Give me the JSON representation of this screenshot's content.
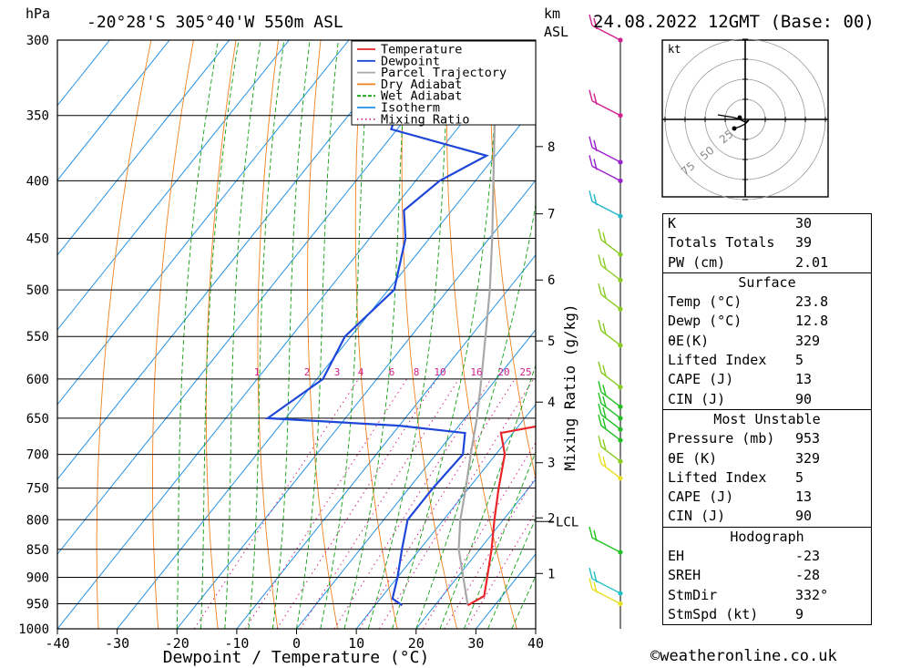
{
  "header": {
    "location": "-20°28'S  305°40'W  550m  ASL",
    "datetime": "24.08.2022  12GMT  (Base: 00)",
    "unit_left": "hPa",
    "unit_right_1": "km",
    "unit_right_2": "ASL"
  },
  "chart_data": {
    "type": "skew-t log-p",
    "xlabel": "Dewpoint / Temperature (°C)",
    "ylabel_right": "Mixing Ratio (g/kg)",
    "x_ticks": [
      -40,
      -30,
      -20,
      -10,
      0,
      10,
      20,
      30,
      40
    ],
    "pressure_levels": [
      300,
      350,
      400,
      450,
      500,
      550,
      600,
      650,
      700,
      750,
      800,
      850,
      900,
      950,
      1000
    ],
    "km_ticks": [
      {
        "km": "1",
        "p": 893
      },
      {
        "km": "2",
        "p": 797
      },
      {
        "km": "3",
        "p": 712
      },
      {
        "km": "4",
        "p": 629
      },
      {
        "km": "5",
        "p": 555
      },
      {
        "km": "6",
        "p": 490
      },
      {
        "km": "7",
        "p": 428
      },
      {
        "km": "8",
        "p": 373
      }
    ],
    "lcl": {
      "label": "LCL",
      "p": 803
    },
    "mixing_ratio_labels": [
      "1",
      "2",
      "3",
      "4",
      "6",
      "8",
      "10",
      "16",
      "20",
      "25"
    ],
    "legend": [
      {
        "name": "Temperature",
        "color": "#e8262a",
        "style": "solid"
      },
      {
        "name": "Dewpoint",
        "color": "#1e46d8",
        "style": "solid"
      },
      {
        "name": "Parcel Trajectory",
        "color": "#a8a8a8",
        "style": "solid"
      },
      {
        "name": "Dry Adiabat",
        "color": "#f08020",
        "style": "solid"
      },
      {
        "name": "Wet Adiabat",
        "color": "#10a010",
        "style": "dashed"
      },
      {
        "name": "Isotherm",
        "color": "#2090e8",
        "style": "solid"
      },
      {
        "name": "Mixing Ratio",
        "color": "#d0208c",
        "style": "dotted"
      }
    ],
    "legend_position": "top-right",
    "temperature": [
      [
        953,
        25.5
      ],
      [
        935,
        27.0
      ],
      [
        900,
        25.0
      ],
      [
        850,
        22.0
      ],
      [
        800,
        18.5
      ],
      [
        750,
        15.0
      ],
      [
        700,
        11.5
      ],
      [
        670,
        8.0
      ],
      [
        660,
        13.5
      ],
      [
        650,
        17.5
      ],
      [
        600,
        14.0
      ],
      [
        550,
        11.0
      ],
      [
        500,
        3.5
      ],
      [
        450,
        -4.0
      ],
      [
        400,
        -12.0
      ],
      [
        350,
        -21.5
      ],
      [
        320,
        -24.5
      ],
      [
        300,
        -29.0
      ]
    ],
    "dewpoint": [
      [
        953,
        14.5
      ],
      [
        940,
        12.0
      ],
      [
        900,
        10.0
      ],
      [
        850,
        7.0
      ],
      [
        800,
        4.0
      ],
      [
        750,
        4.0
      ],
      [
        700,
        4.5
      ],
      [
        670,
        2.0
      ],
      [
        660,
        -10.0
      ],
      [
        650,
        -33.0
      ],
      [
        600,
        -29.0
      ],
      [
        550,
        -31.0
      ],
      [
        500,
        -29.0
      ],
      [
        450,
        -34.0
      ],
      [
        425,
        -38.0
      ],
      [
        400,
        -36.0
      ],
      [
        380,
        -31.5
      ],
      [
        360,
        -51.0
      ],
      [
        350,
        -52.0
      ],
      [
        300,
        -58.0
      ]
    ],
    "parcel": [
      [
        953,
        25.5
      ],
      [
        900,
        21.0
      ],
      [
        850,
        16.5
      ],
      [
        800,
        12.8
      ],
      [
        750,
        9.5
      ],
      [
        700,
        5.8
      ],
      [
        650,
        2.0
      ],
      [
        600,
        -2.5
      ],
      [
        550,
        -7.5
      ],
      [
        500,
        -13.0
      ],
      [
        450,
        -19.5
      ],
      [
        400,
        -27.0
      ],
      [
        350,
        -35.5
      ],
      [
        300,
        -45.0
      ]
    ],
    "wind_barbs": [
      {
        "p": 300,
        "color": "#d0208c"
      },
      {
        "p": 350,
        "color": "#d0208c"
      },
      {
        "p": 385,
        "color": "#9a20c8"
      },
      {
        "p": 400,
        "color": "#9a20c8"
      },
      {
        "p": 430,
        "color": "#20b8c8"
      },
      {
        "p": 465,
        "color": "#88cc22"
      },
      {
        "p": 490,
        "color": "#88cc22"
      },
      {
        "p": 520,
        "color": "#88cc22"
      },
      {
        "p": 560,
        "color": "#88cc22"
      },
      {
        "p": 610,
        "color": "#88cc22"
      },
      {
        "p": 635,
        "color": "#22c022"
      },
      {
        "p": 650,
        "color": "#22c022"
      },
      {
        "p": 665,
        "color": "#22c022"
      },
      {
        "p": 680,
        "color": "#22c022"
      },
      {
        "p": 710,
        "color": "#88cc22"
      },
      {
        "p": 735,
        "color": "#e8e020"
      },
      {
        "p": 855,
        "color": "#22c022"
      },
      {
        "p": 930,
        "color": "#20c0c8"
      },
      {
        "p": 950,
        "color": "#e8e020"
      }
    ]
  },
  "hodograph": {
    "unit": "kt",
    "ring_labels": [
      "25",
      "50",
      "75"
    ]
  },
  "indices": [
    {
      "label": "K",
      "value": "30"
    },
    {
      "label": "Totals Totals",
      "value": "39"
    },
    {
      "label": "PW (cm)",
      "value": "2.01"
    }
  ],
  "surface": {
    "title": "Surface",
    "rows": [
      {
        "label": "Temp (°C)",
        "value": "23.8"
      },
      {
        "label": "Dewp (°C)",
        "value": "12.8"
      },
      {
        "label": "θE(K)",
        "value": "329"
      },
      {
        "label": "Lifted Index",
        "value": "5"
      },
      {
        "label": "CAPE (J)",
        "value": "13"
      },
      {
        "label": "CIN (J)",
        "value": "90"
      }
    ]
  },
  "most_unstable": {
    "title": "Most Unstable",
    "rows": [
      {
        "label": "Pressure (mb)",
        "value": "953"
      },
      {
        "label": "θE (K)",
        "value": "329"
      },
      {
        "label": "Lifted Index",
        "value": "5"
      },
      {
        "label": "CAPE (J)",
        "value": "13"
      },
      {
        "label": "CIN (J)",
        "value": "90"
      }
    ]
  },
  "hodograph_panel": {
    "title": "Hodograph",
    "rows": [
      {
        "label": "EH",
        "value": "-23"
      },
      {
        "label": "SREH",
        "value": "-28"
      },
      {
        "label": "StmDir",
        "value": "332°"
      },
      {
        "label": "StmSpd (kt)",
        "value": "9"
      }
    ]
  },
  "credit": "©weatheronline.co.uk"
}
